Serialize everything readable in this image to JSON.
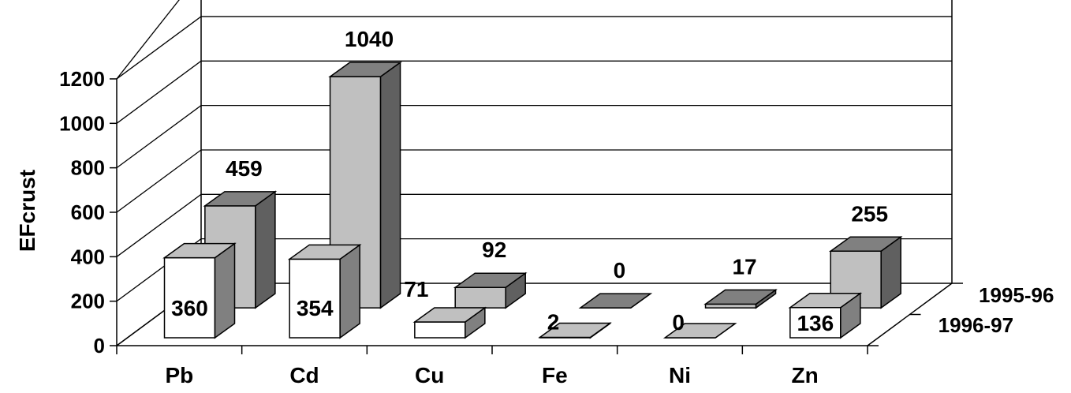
{
  "chart_data": {
    "type": "bar",
    "subtype": "3d-clustered-bar",
    "ylabel": "EFcrust",
    "xlabel": "",
    "ylim": [
      0,
      1200
    ],
    "yticks": [
      0,
      200,
      400,
      600,
      800,
      1000,
      1200
    ],
    "grid": true,
    "categories": [
      "Pb",
      "Cd",
      "Cu",
      "Fe",
      "Ni",
      "Zn"
    ],
    "series": [
      {
        "name": "1996-97",
        "values": [
          360,
          354,
          71,
          2,
          0,
          136
        ],
        "color": "#ffffff",
        "top_color": "#c0c0c0",
        "side_color": "#808080"
      },
      {
        "name": "1995-96",
        "values": [
          459,
          1040,
          92,
          0,
          17,
          255
        ],
        "color": "#c0c0c0",
        "top_color": "#808080",
        "side_color": "#606060"
      }
    ],
    "data_labels": {
      "1996-97": [
        "360",
        "354",
        "71",
        "2",
        "0",
        "136"
      ],
      "1995-96": [
        "459",
        "1040",
        "92",
        "0",
        "17",
        "255"
      ]
    }
  }
}
